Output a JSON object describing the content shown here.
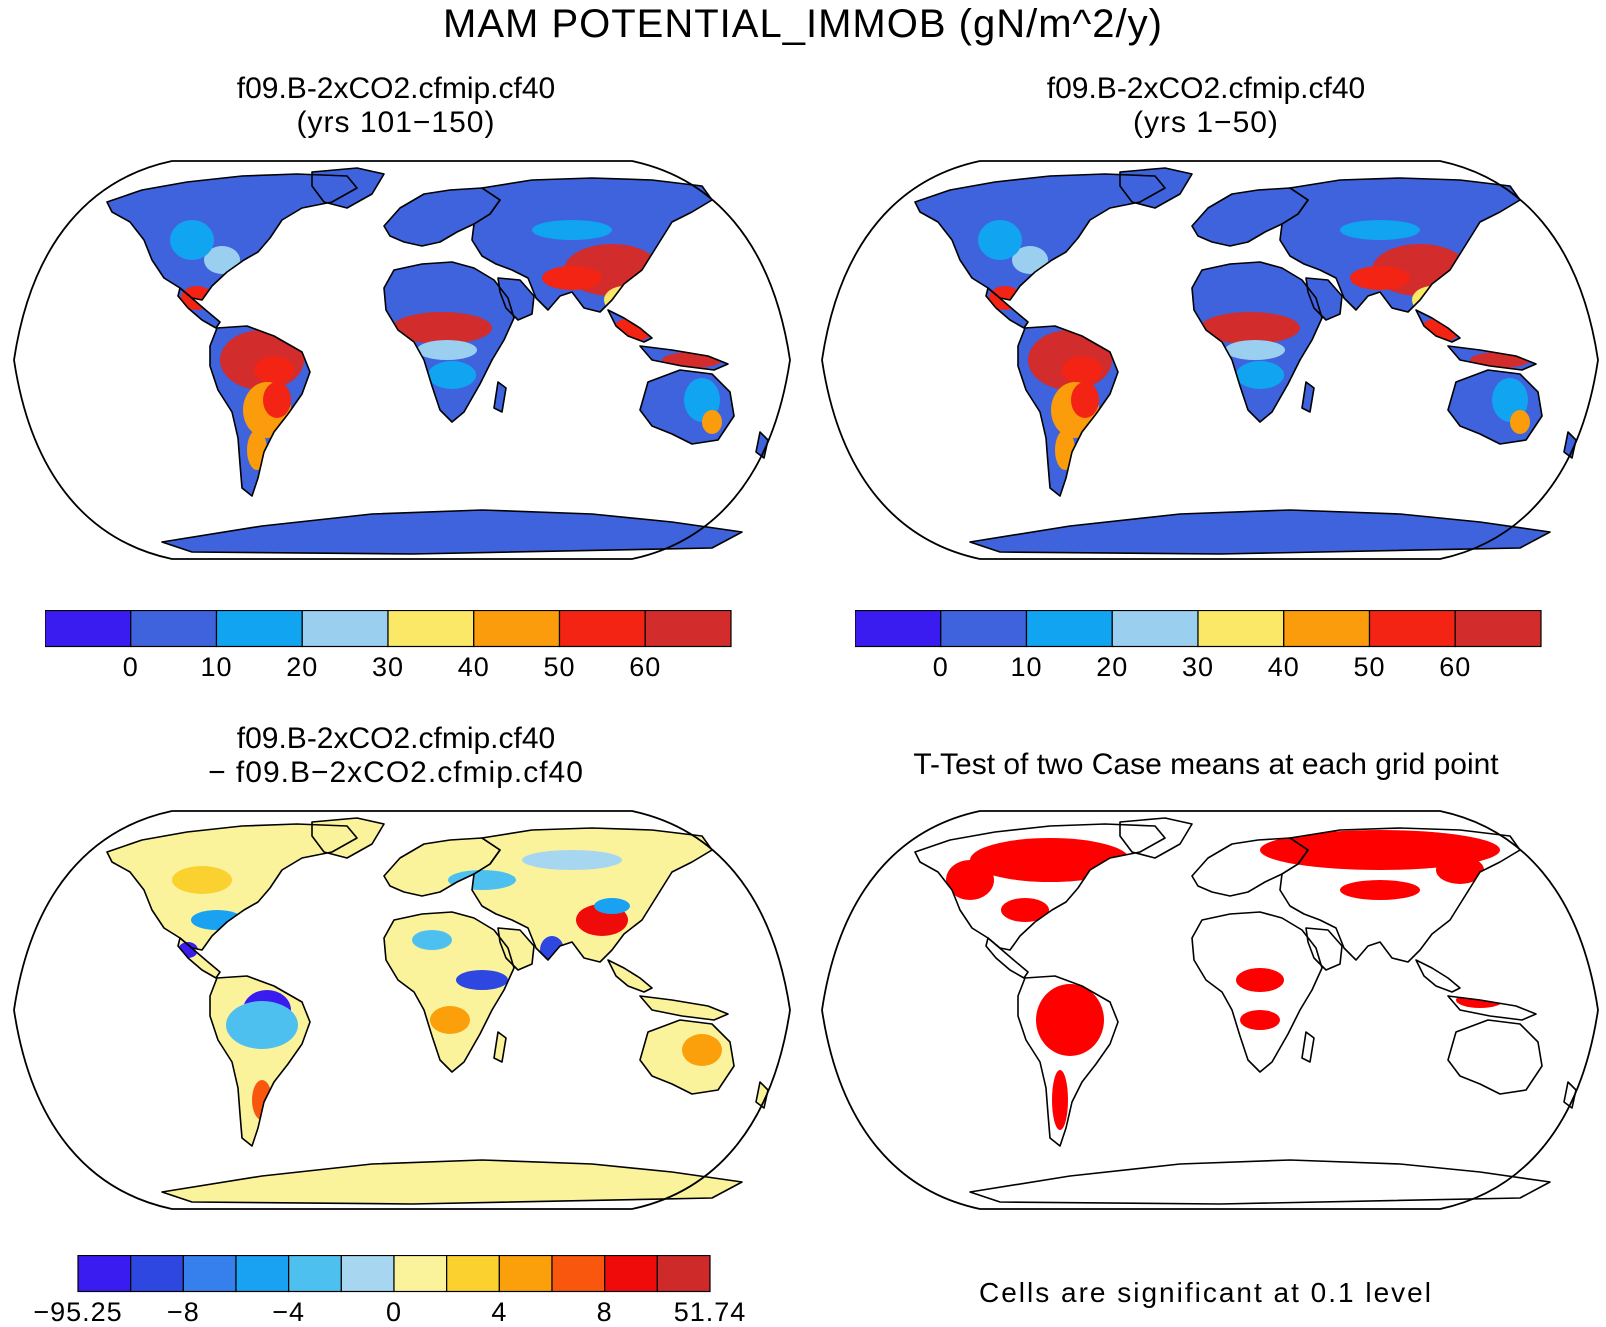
{
  "main_title": "MAM POTENTIAL_IMMOB (gN/m^2/y)",
  "panels": {
    "top_left": {
      "title1": "f09.B-2xCO2.cfmip.cf40",
      "title2": "(yrs 101−150)"
    },
    "top_right": {
      "title1": "f09.B-2xCO2.cfmip.cf40",
      "title2": "(yrs 1−50)"
    },
    "bottom_left": {
      "title1": "f09.B-2xCO2.cfmip.cf40",
      "title2": "− f09.B−2xCO2.cfmip.cf40"
    },
    "bottom_right": {
      "title1": "T-Test of two Case means at each grid point"
    }
  },
  "colorbar_abs": {
    "colors": [
      "#3a1cf0",
      "#3e63dd",
      "#11a4f1",
      "#9bcff0",
      "#fbe866",
      "#fb9c0c",
      "#f32414",
      "#d22c2c"
    ],
    "labels": [
      "0",
      "10",
      "20",
      "30",
      "40",
      "50",
      "60"
    ]
  },
  "colorbar_diff": {
    "colors": [
      "#3a1cf0",
      "#2d47e0",
      "#3580ec",
      "#19a1f2",
      "#4ec0f0",
      "#a6d6f0",
      "#fbf39b",
      "#fbd130",
      "#fb9f0a",
      "#f9560e",
      "#f00b0b",
      "#cf2a2a"
    ],
    "labels": [
      "−95.25",
      "−8",
      "−4",
      "0",
      "4",
      "8",
      "51.74"
    ]
  },
  "significance_color": "#ff0000",
  "significance_note": "Cells are significant at 0.1 level"
}
